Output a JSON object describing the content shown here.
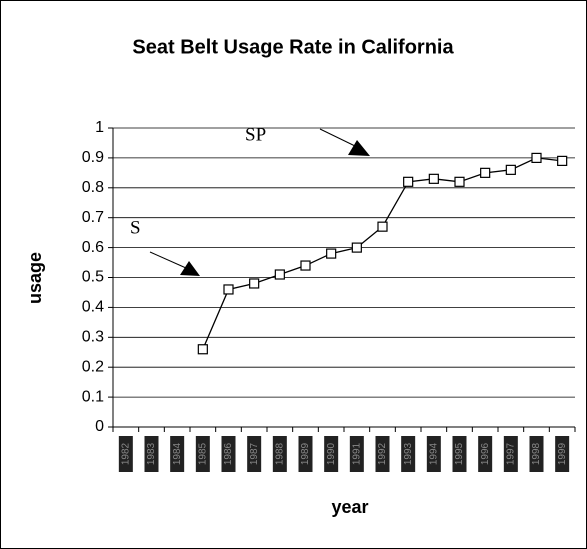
{
  "chart_data": {
    "type": "line",
    "title": "Seat Belt Usage Rate in California",
    "x_label": "year",
    "y_label": "usage",
    "categories": [
      "1982",
      "1983",
      "1984",
      "1985",
      "1986",
      "1987",
      "1988",
      "1989",
      "1990",
      "1991",
      "1992",
      "1993",
      "1994",
      "1995",
      "1996",
      "1997",
      "1998",
      "1999"
    ],
    "series": [
      {
        "color": "#000000",
        "values": [
          null,
          null,
          null,
          0.26,
          0.46,
          0.48,
          0.51,
          0.54,
          0.58,
          0.6,
          0.67,
          0.82,
          0.83,
          0.82,
          0.85,
          0.86,
          0.9,
          0.89
        ]
      }
    ],
    "ylim": [
      0,
      1
    ],
    "yticks": [
      0,
      0.1,
      0.2,
      0.3,
      0.4,
      0.5,
      0.6,
      0.7,
      0.8,
      0.9,
      1
    ],
    "grid": true,
    "annotations": [
      "S",
      "SP"
    ]
  }
}
